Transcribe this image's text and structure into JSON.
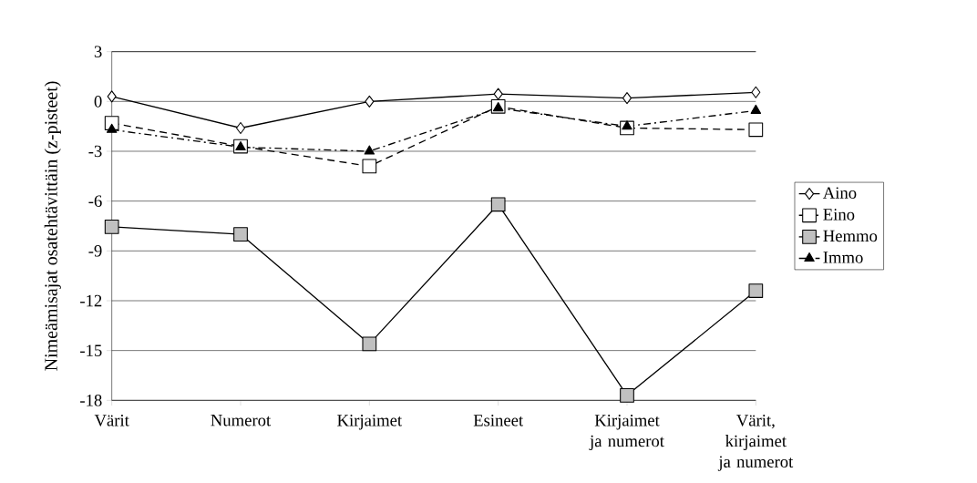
{
  "chart_data": {
    "type": "line",
    "ylabel": "Nimeämisajat osatehtävittäin (z-pisteet)",
    "categories": [
      "Värit",
      "Numerot",
      "Kirjaimet",
      "Esineet",
      "Kirjaimet ja numerot",
      "Värit, kirjaimet ja numerot"
    ],
    "series": [
      {
        "name": "Aino",
        "color": "#000000",
        "marker": "diamond",
        "line_style": "solid",
        "values": [
          0.3,
          -1.6,
          0.0,
          0.45,
          0.2,
          0.55
        ]
      },
      {
        "name": "Eino",
        "color": "#000000",
        "marker": "square",
        "line_style": "dashed",
        "values": [
          -1.3,
          -2.7,
          -3.9,
          -0.3,
          -1.6,
          -1.7
        ]
      },
      {
        "name": "Hemmo",
        "color": "#000000",
        "marker": "square",
        "line_style": "solid",
        "values": [
          -7.55,
          -8.0,
          -14.6,
          -6.2,
          -17.7,
          -11.4
        ]
      },
      {
        "name": "Immo",
        "color": "#000000",
        "marker": "triangle",
        "line_style": "dashdot",
        "values": [
          -1.7,
          -2.75,
          -3.0,
          -0.4,
          -1.5,
          -0.55
        ]
      }
    ],
    "ylim": [
      -18,
      3
    ],
    "yticks": [
      3,
      0,
      -3,
      -6,
      -9,
      -12,
      -15,
      -18
    ],
    "grid": "y",
    "legend": "right"
  }
}
